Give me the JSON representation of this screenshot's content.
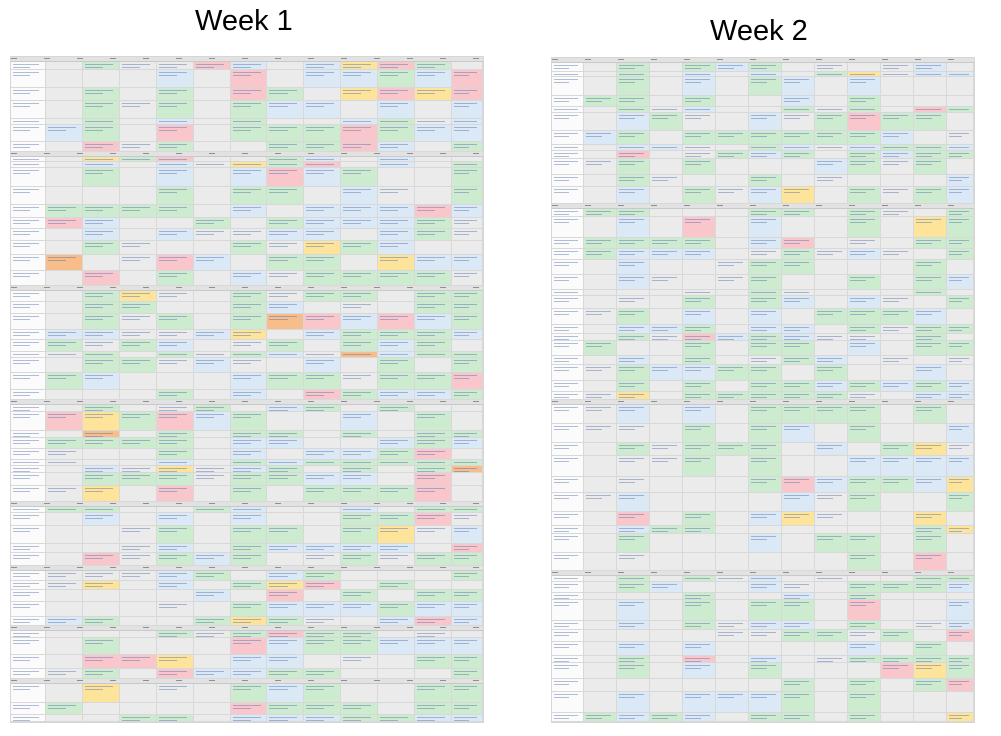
{
  "titles": {
    "week1": "Week 1",
    "week2": "Week 2"
  },
  "palette": {
    "default": "#ebebeb",
    "green": "#cdeccf",
    "blue": "#dbe8f5",
    "red": "#f9c6cc",
    "yellow": "#fde49a",
    "orange": "#f7bd8a",
    "white": "#fbfbfb"
  },
  "sheets": [
    {
      "id": "week1",
      "cols": 13,
      "rows": 52,
      "seed": 7,
      "weights": {
        "green": 34,
        "blue": 22,
        "default": 30,
        "red": 8,
        "yellow": 5,
        "orange": 1
      },
      "blank_cols": [
        1,
        3,
        5
      ],
      "section_rows": [
        7,
        17,
        26,
        35,
        40,
        45,
        49
      ]
    },
    {
      "id": "week2",
      "cols": 13,
      "rows": 50,
      "seed": 19,
      "weights": {
        "green": 38,
        "blue": 22,
        "default": 33,
        "red": 4,
        "yellow": 4,
        "orange": 0
      },
      "blank_cols": [
        1,
        3,
        5,
        8,
        10
      ],
      "section_rows": [
        12,
        28,
        38
      ]
    }
  ]
}
